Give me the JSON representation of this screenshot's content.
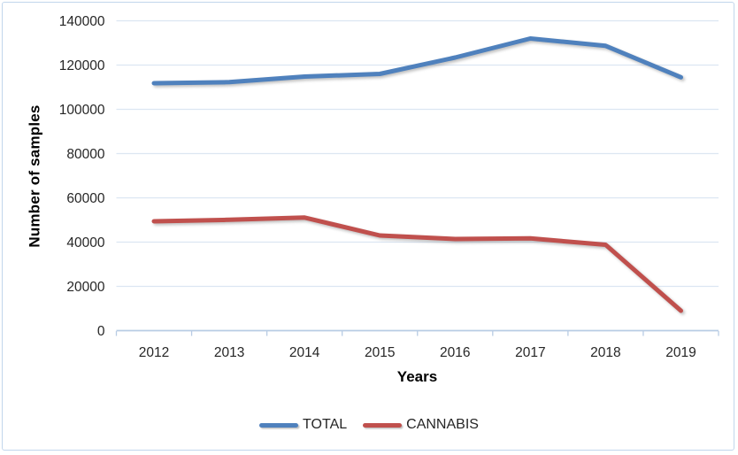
{
  "chart_data": {
    "type": "line",
    "xlabel": "Years",
    "ylabel": "Number of samples",
    "categories": [
      "2012",
      "2013",
      "2014",
      "2015",
      "2016",
      "2017",
      "2018",
      "2019"
    ],
    "series": [
      {
        "name": "TOTAL",
        "color": "#4F81BD",
        "values": [
          111800,
          112300,
          114800,
          116000,
          123400,
          132000,
          128700,
          114500
        ]
      },
      {
        "name": "CANNABIS",
        "color": "#C0504D",
        "values": [
          49400,
          50100,
          51100,
          43000,
          41400,
          41700,
          38800,
          9000
        ]
      }
    ],
    "y_ticks": [
      0,
      20000,
      40000,
      60000,
      80000,
      100000,
      120000,
      140000
    ],
    "ylim": [
      0,
      140000
    ],
    "grid": true,
    "legend_position": "bottom",
    "colors": {
      "gridline": "#dce6f2",
      "axis_line": "#b8cce4",
      "tick_label": "#262626",
      "frame_border": "#c2d6ec"
    }
  }
}
